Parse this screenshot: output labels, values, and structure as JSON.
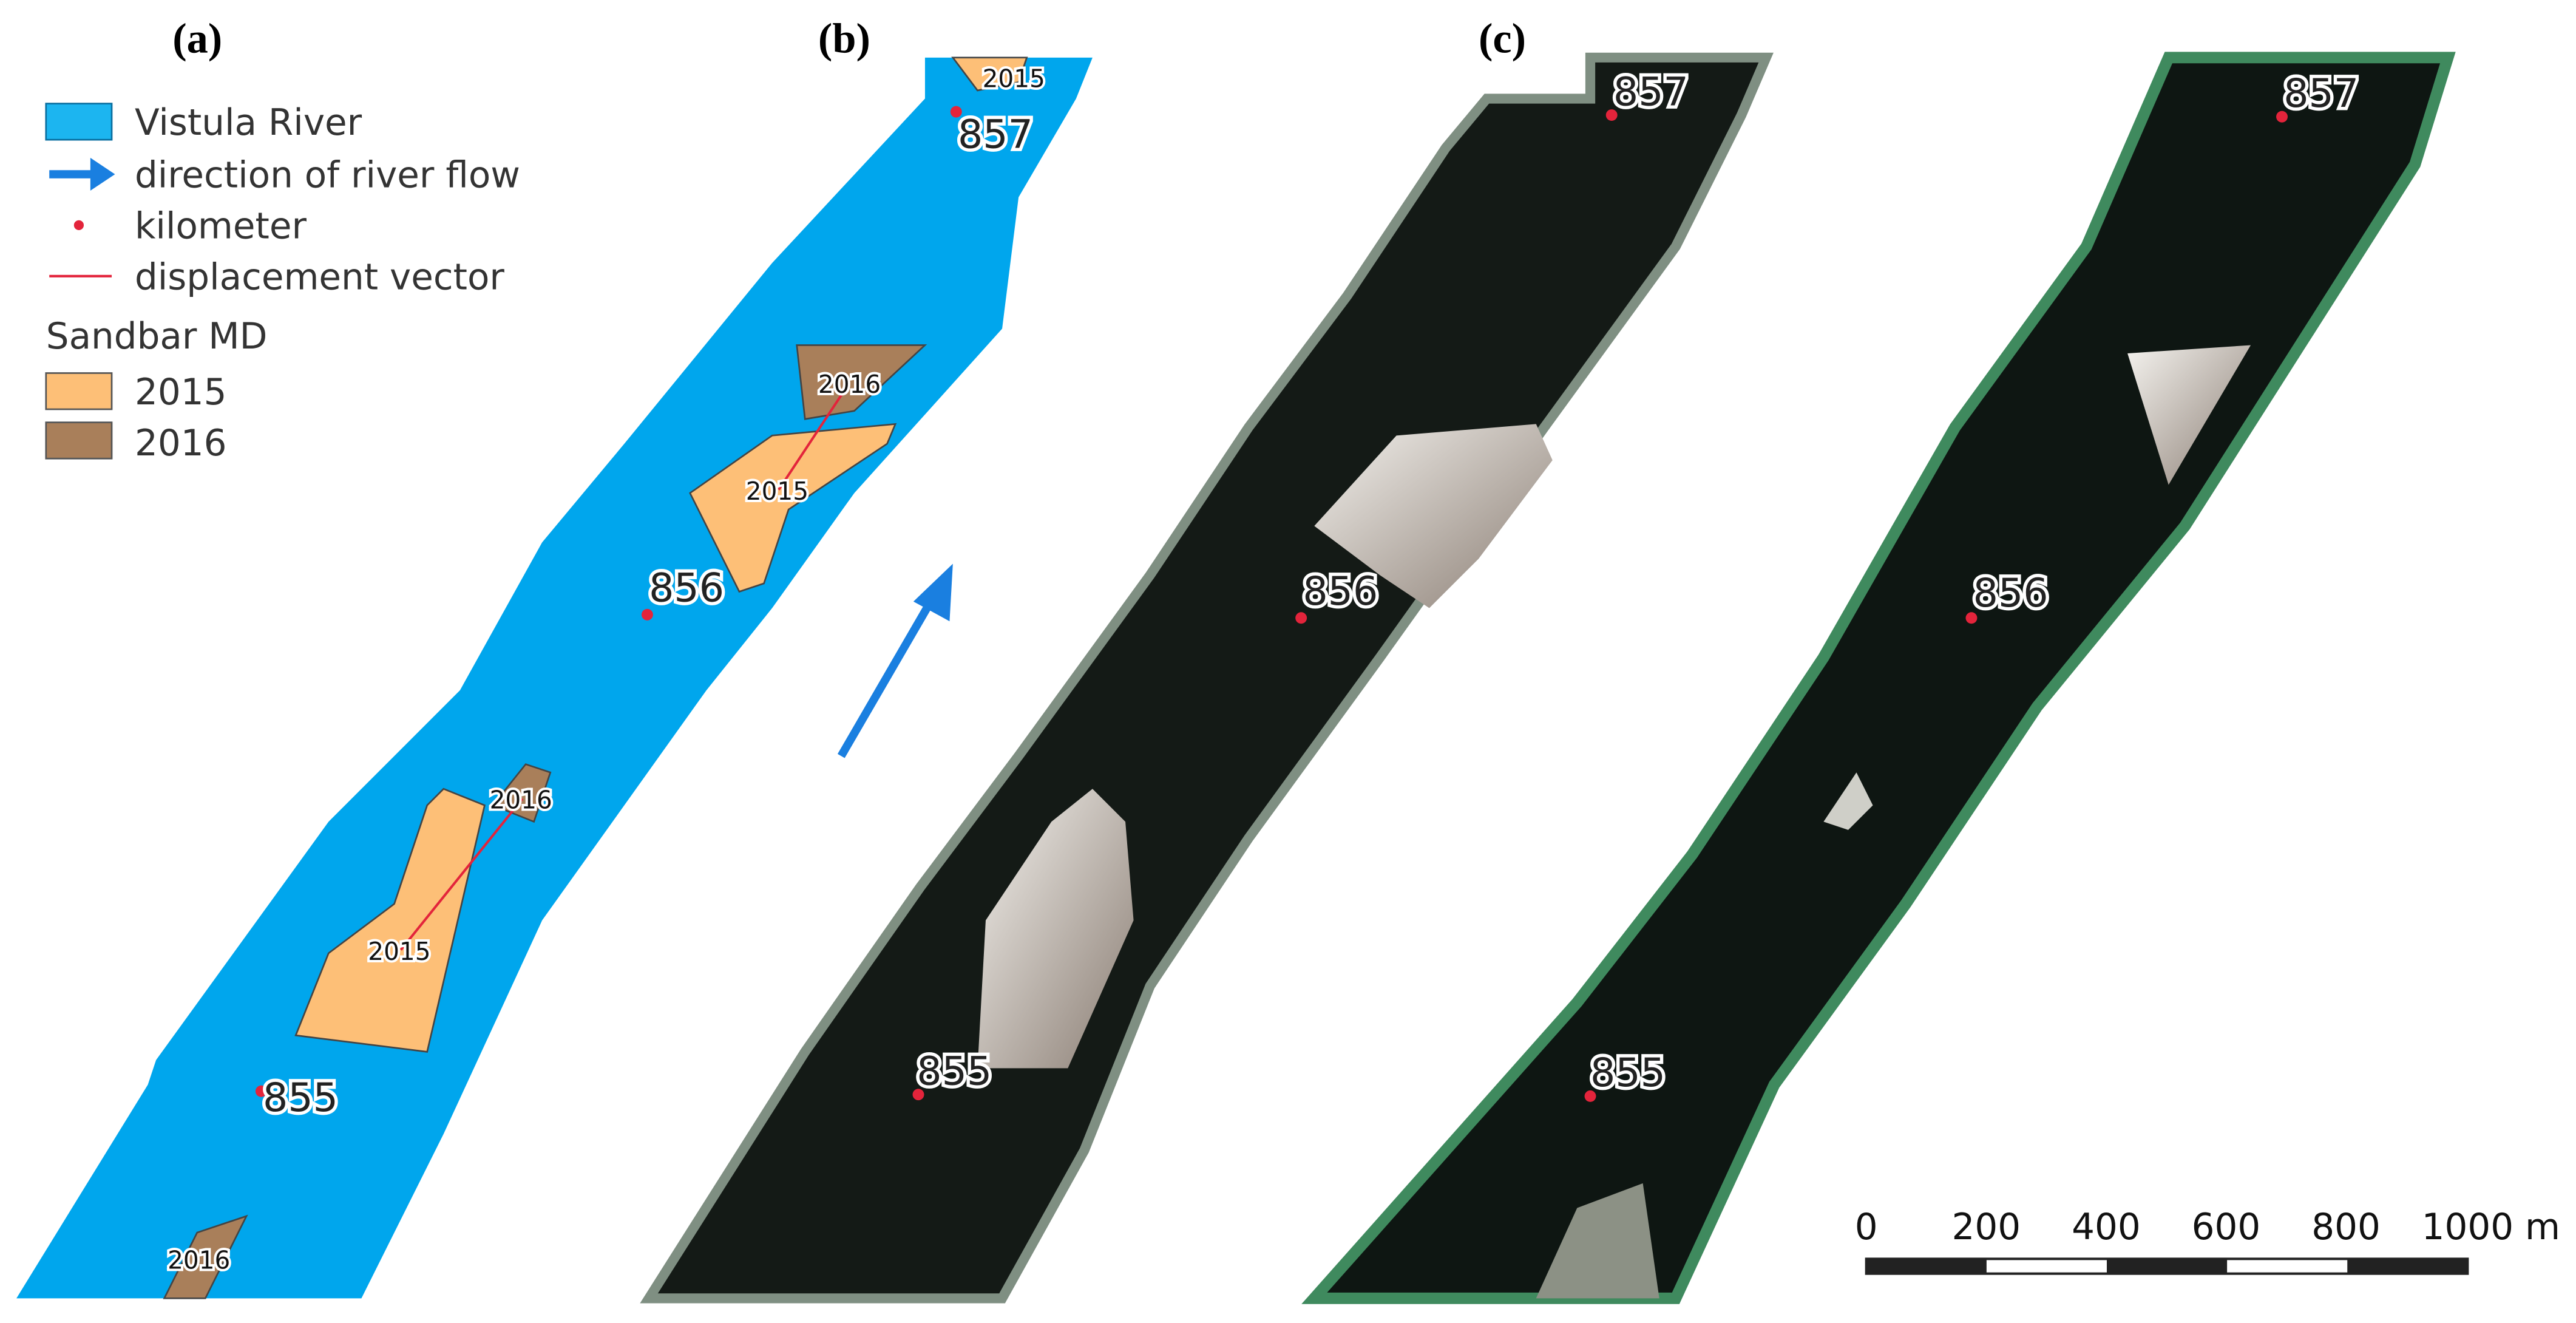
{
  "panels": [
    "(a)",
    "(b)",
    "(c)"
  ],
  "legend": {
    "items": [
      "Vistula River",
      "direction of river flow",
      "kilometer",
      "displacement vector"
    ],
    "group_title": "Sandbar MD",
    "years": [
      "2015",
      "2016"
    ]
  },
  "map_a": {
    "sandbar_labels": [
      "2015",
      "2016",
      "2015",
      "2016",
      "2015",
      "2016"
    ],
    "kilometers": [
      "857",
      "856",
      "855"
    ]
  },
  "map_b": {
    "kilometers": [
      "857",
      "856",
      "855"
    ]
  },
  "map_c": {
    "kilometers": [
      "857",
      "856",
      "855"
    ]
  },
  "scale_bar": {
    "labels": [
      "0",
      "200",
      "400",
      "600",
      "800",
      "1000 m"
    ]
  }
}
